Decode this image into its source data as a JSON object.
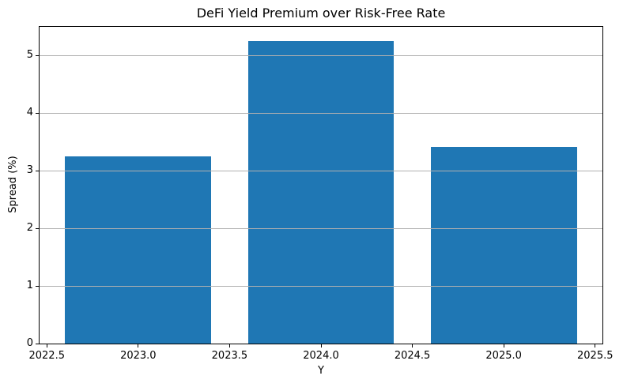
{
  "chart_data": {
    "type": "bar",
    "title": "DeFi Yield Premium over Risk-Free Rate",
    "xlabel": "Y",
    "ylabel": "Spread (%)",
    "categories": [
      2023,
      2024,
      2025
    ],
    "values": [
      3.25,
      5.25,
      3.41
    ],
    "bar_width": 0.8,
    "xlim": [
      2022.46,
      2025.54
    ],
    "ylim": [
      0,
      5.5
    ],
    "x_ticks": [
      2022.5,
      2023.0,
      2023.5,
      2024.0,
      2024.5,
      2025.0,
      2025.5
    ],
    "x_tick_labels": [
      "2022.5",
      "2023.0",
      "2023.5",
      "2024.0",
      "2024.5",
      "2025.0",
      "2025.5"
    ],
    "y_ticks": [
      0,
      1,
      2,
      3,
      4,
      5
    ],
    "y_tick_labels": [
      "0",
      "1",
      "2",
      "3",
      "4",
      "5"
    ],
    "grid": "horizontal",
    "grid_above_bars": true,
    "legend": "none",
    "colors": {
      "bar": "#1f77b4",
      "grid": "#b0b0b0",
      "spine": "#000000",
      "text": "#000000",
      "background": "#ffffff"
    }
  }
}
